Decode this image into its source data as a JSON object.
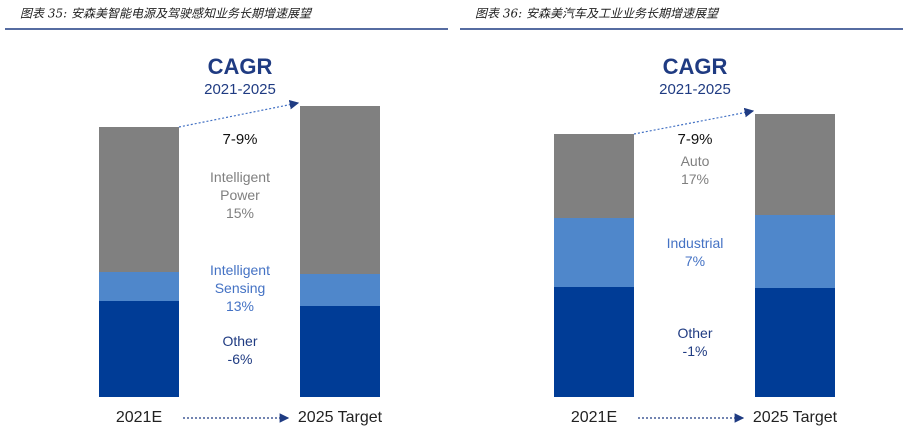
{
  "chart_data": [
    {
      "type": "bar",
      "stacked": true,
      "caption": "图表 35: 安森美智能电源及驾驶感知业务长期增速展望",
      "title": "CAGR",
      "subtitle": "2021-2025",
      "total_cagr": "7-9%",
      "categories": [
        "2021E",
        "2025 Target"
      ],
      "ylim": [
        0,
        300
      ],
      "series": [
        {
          "name": "Other",
          "cagr": "-6%",
          "color": "#003c96",
          "label_color": "#1f3b82",
          "values": [
            96,
            91
          ]
        },
        {
          "name": "Intelligent Sensing",
          "cagr": "13%",
          "color": "#4f87cb",
          "label_color": "#4472c4",
          "values": [
            29,
            32
          ]
        },
        {
          "name": "Intelligent Power",
          "cagr": "15%",
          "color": "#808080",
          "label_color": "#7f7f7f",
          "values": [
            145,
            168
          ]
        }
      ]
    },
    {
      "type": "bar",
      "stacked": true,
      "caption": "图表 36: 安森美汽车及工业业务长期增速展望",
      "title": "CAGR",
      "subtitle": "2021-2025",
      "total_cagr": "7-9%",
      "categories": [
        "2021E",
        "2025 Target"
      ],
      "ylim": [
        0,
        300
      ],
      "series": [
        {
          "name": "Other",
          "cagr": "-1%",
          "color": "#003c96",
          "label_color": "#1f3b82",
          "values": [
            110,
            109
          ]
        },
        {
          "name": "Industrial",
          "cagr": "7%",
          "color": "#4f87cb",
          "label_color": "#4472c4",
          "values": [
            69,
            73
          ]
        },
        {
          "name": "Auto",
          "cagr": "17%",
          "color": "#808080",
          "label_color": "#7f7f7f",
          "values": [
            84,
            101
          ]
        }
      ]
    }
  ]
}
